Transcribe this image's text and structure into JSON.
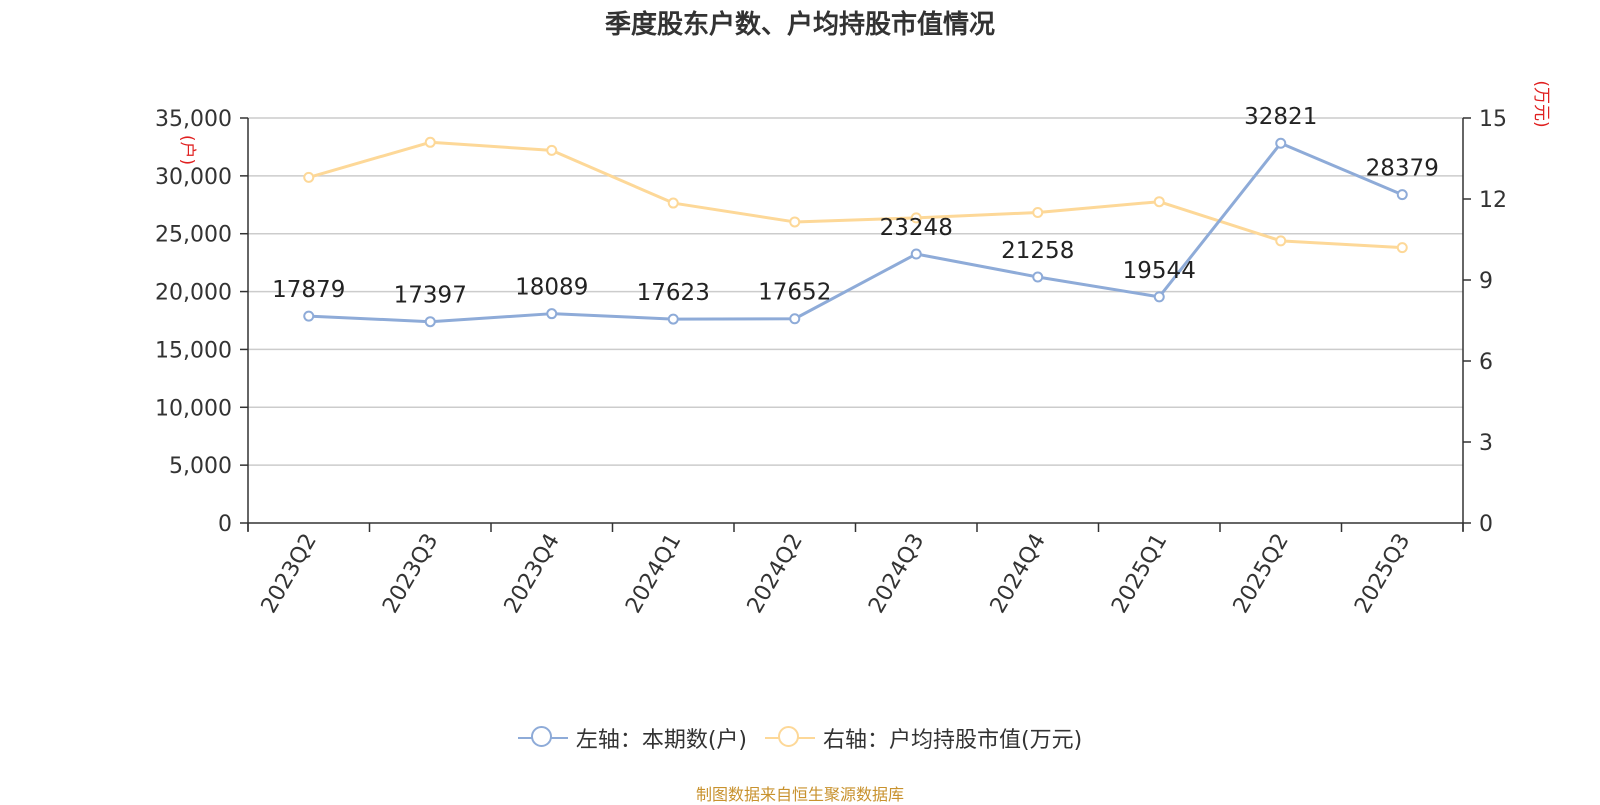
{
  "title": "季度股东户数、户均持股市值情况",
  "source": "制图数据来自恒生聚源数据库",
  "colors": {
    "left_series": "#8eabd8",
    "right_series": "#fdd898",
    "unit_label": "#e02020",
    "source": "#c8922e"
  },
  "legend": [
    {
      "label": "左轴：本期数(户)",
      "icon": "circle-line-icon",
      "color": "#8eabd8"
    },
    {
      "label": "右轴：户均持股市值(万元)",
      "icon": "circle-line-icon",
      "color": "#fdd898"
    }
  ],
  "chart_data": {
    "type": "line",
    "title": "季度股东户数、户均持股市值情况",
    "categories": [
      "2023Q2",
      "2023Q3",
      "2023Q4",
      "2024Q1",
      "2024Q2",
      "2024Q3",
      "2024Q4",
      "2025Q1",
      "2025Q2",
      "2025Q3"
    ],
    "left_axis": {
      "unit_label": "(户)",
      "range": [
        0,
        35000
      ],
      "ticks": [
        "0",
        "5,000",
        "10,000",
        "15,000",
        "20,000",
        "25,000",
        "30,000",
        "35,000"
      ],
      "grid": true
    },
    "right_axis": {
      "unit_label": "(万元)",
      "range": [
        0,
        15
      ],
      "ticks": [
        "0",
        "3",
        "6",
        "9",
        "12",
        "15"
      ]
    },
    "series": [
      {
        "name": "左轴：本期数(户)",
        "axis": "left",
        "values": [
          17879,
          17397,
          18089,
          17623,
          17652,
          23248,
          21258,
          19544,
          32821,
          28379
        ],
        "data_labels": [
          "17879",
          "17397",
          "18089",
          "17623",
          "17652",
          "23248",
          "21258",
          "19544",
          "32821",
          "28379"
        ]
      },
      {
        "name": "右轴：户均持股市值(万元)",
        "axis": "right",
        "values": [
          12.8,
          14.1,
          13.8,
          11.85,
          11.15,
          11.3,
          11.5,
          11.9,
          10.45,
          10.2
        ]
      }
    ],
    "legend_position": "bottom-center"
  }
}
